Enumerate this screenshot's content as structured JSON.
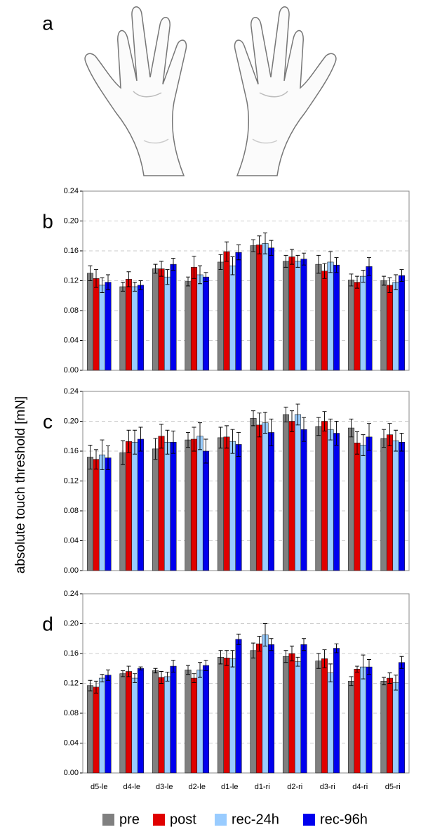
{
  "panel_a": "a",
  "chart_data": [
    {
      "type": "bar",
      "panel": "b",
      "ylim": [
        0,
        0.24
      ],
      "yticks": [
        {
          "value": 0,
          "label": "0.00"
        },
        {
          "value": 0.04,
          "label": "0.04"
        },
        {
          "value": 0.08,
          "label": "0.08"
        },
        {
          "value": 0.12,
          "label": "0.12"
        },
        {
          "value": 0.16,
          "label": "0.16"
        },
        {
          "value": 0.2,
          "label": "0.20"
        },
        {
          "value": 0.24,
          "label": "0.24"
        }
      ],
      "grid": true,
      "series": [
        {
          "name": "pre",
          "color": "#808080",
          "values": [
            0.13,
            0.112,
            0.136,
            0.119,
            0.145,
            0.167,
            0.146,
            0.142,
            0.121,
            0.12
          ],
          "errors": [
            0.01,
            0.006,
            0.006,
            0.006,
            0.01,
            0.008,
            0.008,
            0.012,
            0.008,
            0.006
          ]
        },
        {
          "name": "post",
          "color": "#e00000",
          "values": [
            0.123,
            0.122,
            0.136,
            0.138,
            0.159,
            0.168,
            0.152,
            0.133,
            0.118,
            0.114
          ],
          "errors": [
            0.012,
            0.01,
            0.01,
            0.015,
            0.013,
            0.012,
            0.01,
            0.01,
            0.008,
            0.01
          ]
        },
        {
          "name": "rec-24h",
          "color": "#99ccff",
          "values": [
            0.114,
            0.112,
            0.125,
            0.128,
            0.14,
            0.17,
            0.146,
            0.145,
            0.126,
            0.118
          ],
          "errors": [
            0.01,
            0.006,
            0.01,
            0.012,
            0.012,
            0.014,
            0.008,
            0.014,
            0.008,
            0.01
          ]
        },
        {
          "name": "rec-96h",
          "color": "#0000ee",
          "values": [
            0.118,
            0.114,
            0.142,
            0.125,
            0.158,
            0.164,
            0.149,
            0.141,
            0.139,
            0.127
          ],
          "errors": [
            0.01,
            0.006,
            0.008,
            0.006,
            0.01,
            0.01,
            0.008,
            0.01,
            0.012,
            0.008
          ]
        }
      ]
    },
    {
      "type": "bar",
      "panel": "c",
      "y_label": "absolute touch threshold [mN]",
      "ylim": [
        0,
        0.24
      ],
      "yticks": [
        {
          "value": 0,
          "label": "0.00"
        },
        {
          "value": 0.04,
          "label": "0.04"
        },
        {
          "value": 0.08,
          "label": "0.08"
        },
        {
          "value": 0.12,
          "label": "0.12"
        },
        {
          "value": 0.16,
          "label": "0.16"
        },
        {
          "value": 0.2,
          "label": "0.20"
        },
        {
          "value": 0.24,
          "label": "0.24"
        }
      ],
      "grid": true,
      "series": [
        {
          "name": "pre",
          "color": "#808080",
          "values": [
            0.152,
            0.158,
            0.163,
            0.175,
            0.178,
            0.204,
            0.209,
            0.193,
            0.191,
            0.177
          ],
          "errors": [
            0.016,
            0.016,
            0.014,
            0.01,
            0.014,
            0.01,
            0.01,
            0.012,
            0.012,
            0.012
          ]
        },
        {
          "name": "post",
          "color": "#e00000",
          "values": [
            0.149,
            0.173,
            0.18,
            0.176,
            0.179,
            0.195,
            0.2,
            0.2,
            0.171,
            0.182
          ],
          "errors": [
            0.013,
            0.015,
            0.016,
            0.016,
            0.015,
            0.016,
            0.014,
            0.013,
            0.015,
            0.015
          ]
        },
        {
          "name": "rec-24h",
          "color": "#99ccff",
          "values": [
            0.155,
            0.172,
            0.172,
            0.18,
            0.173,
            0.198,
            0.209,
            0.189,
            0.168,
            0.174
          ],
          "errors": [
            0.02,
            0.016,
            0.016,
            0.018,
            0.016,
            0.014,
            0.014,
            0.014,
            0.014,
            0.014
          ]
        },
        {
          "name": "rec-96h",
          "color": "#0000ee",
          "values": [
            0.151,
            0.176,
            0.172,
            0.16,
            0.169,
            0.185,
            0.189,
            0.184,
            0.179,
            0.172
          ],
          "errors": [
            0.016,
            0.016,
            0.015,
            0.016,
            0.016,
            0.018,
            0.016,
            0.016,
            0.018,
            0.012
          ]
        }
      ]
    },
    {
      "type": "bar",
      "panel": "d",
      "categories": [
        "d5-le",
        "d4-le",
        "d3-le",
        "d2-le",
        "d1-le",
        "d1-ri",
        "d2-ri",
        "d3-ri",
        "d4-ri",
        "d5-ri"
      ],
      "ylim": [
        0,
        0.24
      ],
      "yticks": [
        {
          "value": 0,
          "label": "0.00"
        },
        {
          "value": 0.04,
          "label": "0.04"
        },
        {
          "value": 0.08,
          "label": "0.08"
        },
        {
          "value": 0.12,
          "label": "0.12"
        },
        {
          "value": 0.16,
          "label": "0.16"
        },
        {
          "value": 0.2,
          "label": "0.20"
        },
        {
          "value": 0.24,
          "label": "0.24"
        }
      ],
      "grid": true,
      "series": [
        {
          "name": "pre",
          "color": "#808080",
          "values": [
            0.117,
            0.133,
            0.137,
            0.138,
            0.155,
            0.164,
            0.156,
            0.15,
            0.123,
            0.123
          ],
          "errors": [
            0.007,
            0.004,
            0.003,
            0.006,
            0.009,
            0.01,
            0.008,
            0.01,
            0.006,
            0.005
          ]
        },
        {
          "name": "post",
          "color": "#e00000",
          "values": [
            0.115,
            0.136,
            0.128,
            0.127,
            0.154,
            0.173,
            0.16,
            0.153,
            0.139,
            0.127
          ],
          "errors": [
            0.008,
            0.007,
            0.008,
            0.006,
            0.01,
            0.01,
            0.01,
            0.012,
            0.004,
            0.007
          ]
        },
        {
          "name": "rec-24h",
          "color": "#99ccff",
          "values": [
            0.127,
            0.127,
            0.129,
            0.138,
            0.153,
            0.185,
            0.149,
            0.134,
            0.142,
            0.121
          ],
          "errors": [
            0.005,
            0.006,
            0.006,
            0.01,
            0.011,
            0.015,
            0.006,
            0.012,
            0.016,
            0.01
          ]
        },
        {
          "name": "rec-96h",
          "color": "#0000ee",
          "values": [
            0.131,
            0.14,
            0.143,
            0.144,
            0.179,
            0.172,
            0.172,
            0.167,
            0.142,
            0.148
          ],
          "errors": [
            0.007,
            0.002,
            0.008,
            0.007,
            0.007,
            0.008,
            0.008,
            0.006,
            0.01,
            0.008
          ]
        }
      ]
    }
  ]
}
